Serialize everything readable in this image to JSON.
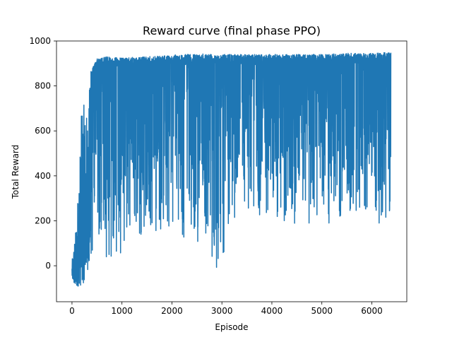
{
  "chart_data": {
    "type": "line",
    "title": "Reward curve (final phase PPO)",
    "xlabel": "Episode",
    "ylabel": "Total Reward",
    "xlim": [
      -310,
      6700
    ],
    "ylim": [
      -160,
      1000
    ],
    "xticks": [
      0,
      1000,
      2000,
      3000,
      4000,
      5000,
      6000
    ],
    "yticks": [
      0,
      200,
      400,
      600,
      800,
      1000
    ],
    "grid": false,
    "legend": "none",
    "series": [
      {
        "color": "#1f77b4",
        "x_range": [
          0,
          6380
        ],
        "envelope": [
          {
            "x": 0,
            "lower": -60,
            "upper": 20
          },
          {
            "x": 80,
            "lower": -110,
            "upper": 170
          },
          {
            "x": 150,
            "lower": -80,
            "upper": 450
          },
          {
            "x": 200,
            "lower": -100,
            "upper": 740
          },
          {
            "x": 300,
            "lower": -20,
            "upper": 680
          },
          {
            "x": 380,
            "lower": -10,
            "upper": 870
          },
          {
            "x": 500,
            "lower": 50,
            "upper": 920
          },
          {
            "x": 700,
            "lower": -10,
            "upper": 930
          },
          {
            "x": 1000,
            "lower": 60,
            "upper": 925
          },
          {
            "x": 1500,
            "lower": 150,
            "upper": 930
          },
          {
            "x": 2000,
            "lower": 120,
            "upper": 935
          },
          {
            "x": 2100,
            "lower": 55,
            "upper": 940
          },
          {
            "x": 2500,
            "lower": 100,
            "upper": 940
          },
          {
            "x": 2800,
            "lower": 0,
            "upper": 945
          },
          {
            "x": 2900,
            "lower": -25,
            "upper": 940
          },
          {
            "x": 3100,
            "lower": 80,
            "upper": 940
          },
          {
            "x": 3500,
            "lower": 180,
            "upper": 940
          },
          {
            "x": 4000,
            "lower": 170,
            "upper": 940
          },
          {
            "x": 4500,
            "lower": 170,
            "upper": 940
          },
          {
            "x": 5000,
            "lower": 180,
            "upper": 940
          },
          {
            "x": 5500,
            "lower": 170,
            "upper": 945
          },
          {
            "x": 6000,
            "lower": 150,
            "upper": 945
          },
          {
            "x": 6380,
            "lower": 200,
            "upper": 950
          }
        ]
      }
    ]
  }
}
